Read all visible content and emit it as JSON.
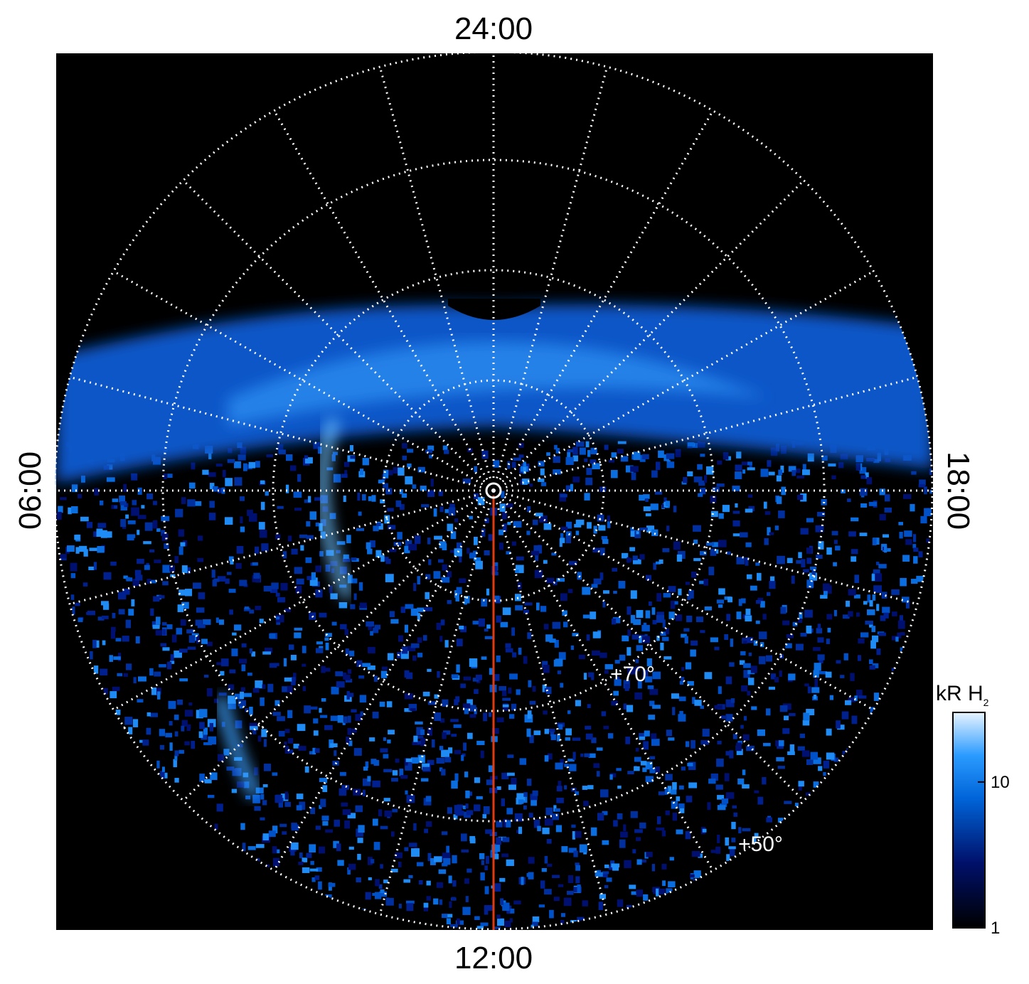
{
  "map": {
    "directions": {
      "top": "24:00",
      "bottom": "12:00",
      "left": "06:00",
      "right": "18:00"
    },
    "latitude_labels": [
      "+70°",
      "+50°"
    ],
    "colorbar": {
      "label": "kR H",
      "subscript": "2",
      "range": [
        1,
        30
      ],
      "ticks": [
        1,
        10
      ],
      "log": true
    }
  }
}
